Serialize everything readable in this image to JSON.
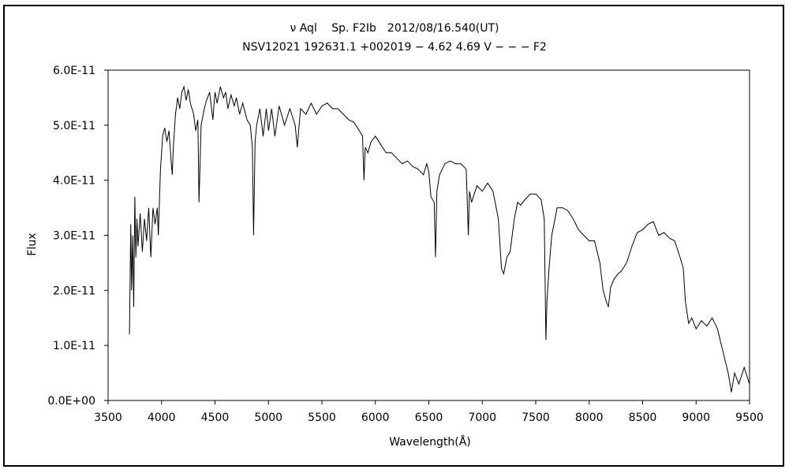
{
  "chart_data": {
    "type": "line",
    "title": "ν Aql　 Sp. F2Ib　2012/08/16.540(UT)",
    "subtitle": "NSV12021 192631.1 +002019 − 4.62 4.69 V − − − F2",
    "xlabel": "Wavelength(Å)",
    "ylabel": "Flux",
    "xlim": [
      3500,
      9500
    ],
    "ylim": [
      0,
      6e-11
    ],
    "xticks": [
      "3500",
      "4000",
      "4500",
      "5000",
      "5500",
      "6000",
      "6500",
      "7000",
      "7500",
      "8000",
      "8500",
      "9000",
      "9500"
    ],
    "yticks": [
      "0.0E+00",
      "1.0E-11",
      "2.0E-11",
      "3.0E-11",
      "4.0E-11",
      "5.0E-11",
      "6.0E-11"
    ],
    "grid": false,
    "series": [
      {
        "x": [
          3700,
          3712,
          3720,
          3730,
          3740,
          3750,
          3760,
          3770,
          3780,
          3800,
          3820,
          3840,
          3860,
          3880,
          3900,
          3920,
          3940,
          3960,
          3970,
          3980,
          3990,
          4000,
          4010,
          4030,
          4050,
          4070,
          4090,
          4100,
          4110,
          4130,
          4150,
          4170,
          4190,
          4210,
          4230,
          4250,
          4270,
          4300,
          4320,
          4340,
          4350,
          4370,
          4400,
          4420,
          4450,
          4480,
          4500,
          4520,
          4550,
          4580,
          4600,
          4620,
          4650,
          4680,
          4700,
          4730,
          4760,
          4800,
          4830,
          4850,
          4861,
          4875,
          4890,
          4920,
          4950,
          4980,
          5000,
          5030,
          5060,
          5100,
          5150,
          5200,
          5250,
          5270,
          5300,
          5350,
          5400,
          5450,
          5500,
          5550,
          5600,
          5650,
          5700,
          5750,
          5800,
          5850,
          5880,
          5893,
          5905,
          5930,
          5960,
          6000,
          6050,
          6100,
          6150,
          6200,
          6250,
          6300,
          6350,
          6400,
          6450,
          6480,
          6500,
          6520,
          6550,
          6563,
          6575,
          6600,
          6650,
          6700,
          6750,
          6800,
          6850,
          6870,
          6880,
          6900,
          6950,
          7000,
          7050,
          7100,
          7150,
          7180,
          7200,
          7230,
          7260,
          7300,
          7330,
          7360,
          7400,
          7450,
          7500,
          7550,
          7580,
          7595,
          7605,
          7625,
          7650,
          7680,
          7700,
          7750,
          7800,
          7850,
          7900,
          7950,
          8000,
          8050,
          8100,
          8130,
          8160,
          8180,
          8200,
          8230,
          8270,
          8300,
          8350,
          8400,
          8450,
          8500,
          8550,
          8600,
          8650,
          8700,
          8750,
          8800,
          8850,
          8880,
          8900,
          8930,
          8960,
          9000,
          9050,
          9100,
          9150,
          9200,
          9250,
          9300,
          9330,
          9360,
          9400,
          9450,
          9500
        ],
        "y": [
          1.2e-11,
          3.2e-11,
          2e-11,
          3e-11,
          1.7e-11,
          3.7e-11,
          2.6e-11,
          3.3e-11,
          2.8e-11,
          3.4e-11,
          2.7e-11,
          3.3e-11,
          2.9e-11,
          3.5e-11,
          2.6e-11,
          3.5e-11,
          3.2e-11,
          3.5e-11,
          3e-11,
          3.6e-11,
          4.2e-11,
          4.5e-11,
          4.8e-11,
          4.95e-11,
          4.7e-11,
          4.9e-11,
          4.35e-11,
          4.1e-11,
          4.6e-11,
          5.2e-11,
          5.5e-11,
          5.3e-11,
          5.6e-11,
          5.7e-11,
          5.45e-11,
          5.65e-11,
          5.4e-11,
          5.2e-11,
          4.9e-11,
          5.1e-11,
          3.6e-11,
          5e-11,
          5.3e-11,
          5.45e-11,
          5.6e-11,
          5.1e-11,
          5.6e-11,
          5.4e-11,
          5.7e-11,
          5.5e-11,
          5.6e-11,
          5.3e-11,
          5.55e-11,
          5.35e-11,
          5.5e-11,
          5.2e-11,
          5.4e-11,
          5.1e-11,
          5e-11,
          4.6e-11,
          3e-11,
          4.7e-11,
          5e-11,
          5.3e-11,
          4.8e-11,
          5.3e-11,
          4.9e-11,
          5.3e-11,
          4.8e-11,
          5.35e-11,
          5e-11,
          5.3e-11,
          5e-11,
          4.6e-11,
          5.3e-11,
          5.2e-11,
          5.4e-11,
          5.2e-11,
          5.35e-11,
          5.4e-11,
          5.3e-11,
          5.3e-11,
          5.2e-11,
          5.1e-11,
          5.05e-11,
          4.9e-11,
          4.8e-11,
          4e-11,
          4.6e-11,
          4.5e-11,
          4.7e-11,
          4.8e-11,
          4.65e-11,
          4.5e-11,
          4.5e-11,
          4.4e-11,
          4.3e-11,
          4.35e-11,
          4.25e-11,
          4.2e-11,
          4.1e-11,
          4.3e-11,
          4.15e-11,
          3.7e-11,
          3.6e-11,
          2.6e-11,
          3.8e-11,
          4.1e-11,
          4.3e-11,
          4.35e-11,
          4.3e-11,
          4.3e-11,
          4.2e-11,
          3e-11,
          3.8e-11,
          3.6e-11,
          3.9e-11,
          3.8e-11,
          3.95e-11,
          3.8e-11,
          3.3e-11,
          2.4e-11,
          2.3e-11,
          2.6e-11,
          2.7e-11,
          3.3e-11,
          3.6e-11,
          3.55e-11,
          3.65e-11,
          3.75e-11,
          3.75e-11,
          3.65e-11,
          3.3e-11,
          1.1e-11,
          1.8e-11,
          2.4e-11,
          3e-11,
          3.3e-11,
          3.5e-11,
          3.5e-11,
          3.45e-11,
          3.3e-11,
          3.1e-11,
          3e-11,
          2.9e-11,
          2.9e-11,
          2.5e-11,
          2e-11,
          1.8e-11,
          1.7e-11,
          2.05e-11,
          2.2e-11,
          2.3e-11,
          2.35e-11,
          2.5e-11,
          2.8e-11,
          3.05e-11,
          3.1e-11,
          3.2e-11,
          3.25e-11,
          3e-11,
          3.05e-11,
          2.95e-11,
          2.9e-11,
          2.6e-11,
          2.4e-11,
          1.8e-11,
          1.4e-11,
          1.5e-11,
          1.3e-11,
          1.45e-11,
          1.35e-11,
          1.5e-11,
          1.3e-11,
          9e-12,
          5e-12,
          1.5e-12,
          5e-12,
          3e-12,
          6e-12,
          3e-12
        ]
      }
    ]
  }
}
